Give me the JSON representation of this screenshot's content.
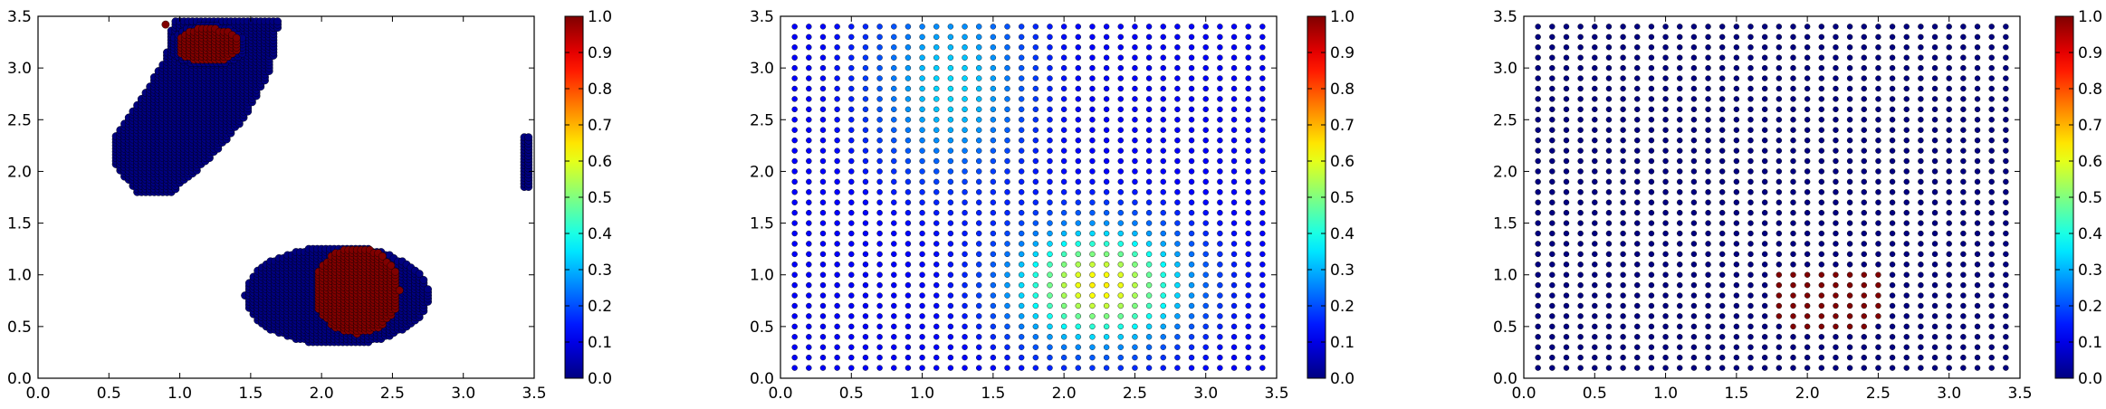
{
  "chart_data": [
    {
      "type": "scatter",
      "xlim": [
        0.0,
        3.5
      ],
      "ylim": [
        0.0,
        3.5
      ],
      "x_ticks": [
        "0.0",
        "0.5",
        "1.0",
        "1.5",
        "2.0",
        "2.5",
        "3.0",
        "3.5"
      ],
      "y_ticks": [
        "0.0",
        "0.5",
        "1.0",
        "1.5",
        "2.0",
        "2.5",
        "3.0",
        "3.5"
      ],
      "grid": false,
      "colormap": "jet",
      "colorbar": {
        "range": [
          0.0,
          1.0
        ],
        "ticks": [
          "0.0",
          "0.1",
          "0.2",
          "0.3",
          "0.4",
          "0.5",
          "0.6",
          "0.7",
          "0.8",
          "0.9",
          "1.0"
        ]
      },
      "point_groups": [
        {
          "shape": "polygon",
          "value": 0.0,
          "spacing": 0.03,
          "vertices": [
            [
              0.95,
              3.45
            ],
            [
              1.7,
              3.45
            ],
            [
              1.65,
              3.0
            ],
            [
              1.45,
              2.5
            ],
            [
              1.2,
              2.1
            ],
            [
              0.95,
              1.8
            ],
            [
              0.7,
              1.8
            ],
            [
              0.55,
              2.05
            ],
            [
              0.55,
              2.35
            ],
            [
              0.75,
              2.75
            ],
            [
              0.9,
              3.1
            ]
          ]
        },
        {
          "shape": "ellipse",
          "value": 0.0,
          "spacing": 0.03,
          "center": [
            1.2,
            3.22
          ],
          "radii": [
            0.27,
            0.2
          ]
        },
        {
          "shape": "ellipse",
          "value": 0.0,
          "spacing": 0.03,
          "center": [
            2.11,
            0.8
          ],
          "radii": [
            0.65,
            0.48
          ]
        },
        {
          "shape": "rect",
          "value": 0.0,
          "spacing": 0.03,
          "x": [
            3.43,
            3.46
          ],
          "y": [
            1.85,
            2.35
          ]
        },
        {
          "shape": "ellipse",
          "value": 1.0,
          "spacing": 0.03,
          "center": [
            1.2,
            3.22
          ],
          "radii": [
            0.22,
            0.17
          ]
        },
        {
          "shape": "ellipse",
          "value": 1.0,
          "spacing": 0.03,
          "center": [
            2.25,
            0.85
          ],
          "radii": [
            0.3,
            0.42
          ]
        },
        {
          "shape": "point",
          "value": 1.0,
          "x": 0.9,
          "y": 3.42
        }
      ]
    },
    {
      "type": "scatter",
      "xlim": [
        0.0,
        3.5
      ],
      "ylim": [
        0.0,
        3.5
      ],
      "x_ticks": [
        "0.0",
        "0.5",
        "1.0",
        "1.5",
        "2.0",
        "2.5",
        "3.0",
        "3.5"
      ],
      "y_ticks": [
        "0.0",
        "0.5",
        "1.0",
        "1.5",
        "2.0",
        "2.5",
        "3.0",
        "3.5"
      ],
      "grid": false,
      "colormap": "jet",
      "colorbar": {
        "range": [
          0.0,
          1.0
        ],
        "ticks": [
          "0.0",
          "0.1",
          "0.2",
          "0.3",
          "0.4",
          "0.5",
          "0.6",
          "0.7",
          "0.8",
          "0.9",
          "1.0"
        ]
      },
      "grid_points": {
        "start": 0.1,
        "end": 3.4,
        "step": 0.1
      },
      "value_field": {
        "base": 0.12,
        "bumps": [
          {
            "center": [
              2.25,
              0.9
            ],
            "sigma": [
              0.42,
              0.38
            ],
            "amp": 0.52
          },
          {
            "center": [
              1.2,
              2.85
            ],
            "sigma": [
              0.38,
              0.62
            ],
            "amp": 0.22
          }
        ]
      }
    },
    {
      "type": "scatter",
      "xlim": [
        0.0,
        3.5
      ],
      "ylim": [
        0.0,
        3.5
      ],
      "x_ticks": [
        "0.0",
        "0.5",
        "1.0",
        "1.5",
        "2.0",
        "2.5",
        "3.0",
        "3.5"
      ],
      "y_ticks": [
        "0.0",
        "0.5",
        "1.0",
        "1.5",
        "2.0",
        "2.5",
        "3.0",
        "3.5"
      ],
      "grid": false,
      "colormap": "jet",
      "colorbar": {
        "range": [
          0.0,
          1.0
        ],
        "ticks": [
          "0.0",
          "0.1",
          "0.2",
          "0.3",
          "0.4",
          "0.5",
          "0.6",
          "0.7",
          "0.8",
          "0.9",
          "1.0"
        ]
      },
      "grid_points": {
        "start": 0.1,
        "end": 3.4,
        "step": 0.1
      },
      "base_value": 0.0,
      "high_value": 1.0,
      "high_region": {
        "x": [
          1.8,
          2.5
        ],
        "y": [
          0.5,
          1.0
        ],
        "excluded_corners": [
          [
            1.8,
            0.5
          ],
          [
            2.5,
            0.5
          ]
        ]
      }
    }
  ]
}
